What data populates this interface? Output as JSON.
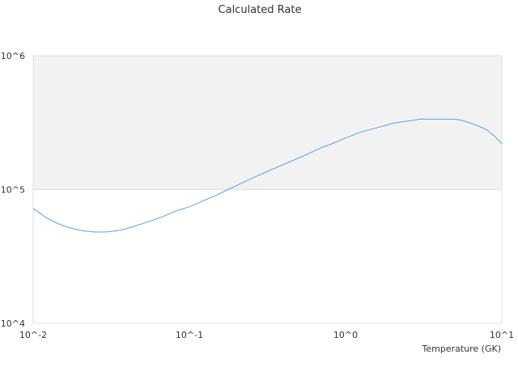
{
  "chart_data": {
    "type": "line",
    "title": "Calculated Rate",
    "xlabel": "Temperature (GK)",
    "ylabel": "",
    "x_scale": "log",
    "y_scale": "log",
    "xlim": [
      0.01,
      10
    ],
    "ylim": [
      10000,
      1000000
    ],
    "x_ticks": [
      "10^-2",
      "10^-1",
      "10^0",
      "10^1"
    ],
    "y_ticks": [
      "10^4",
      "10^5",
      "10^6"
    ],
    "shaded_band": {
      "y_from": 100000,
      "y_to": 1000000,
      "color": "#f2f2f2"
    },
    "line_color": "#5aa0e6",
    "series": [
      {
        "x": [
          0.01,
          0.011,
          0.012,
          0.014,
          0.016,
          0.018,
          0.02,
          0.022,
          0.025,
          0.028,
          0.03,
          0.035,
          0.04,
          0.045,
          0.05,
          0.06,
          0.07,
          0.08,
          0.09,
          0.1,
          0.11,
          0.13,
          0.15,
          0.17,
          0.2,
          0.25,
          0.3,
          0.35,
          0.4,
          0.5,
          0.6,
          0.7,
          0.8,
          0.9,
          1.0,
          1.2,
          1.5,
          1.8,
          2.0,
          2.5,
          3.0,
          3.5,
          4.0,
          4.5,
          5.0,
          5.5,
          6.0,
          7.0,
          8.0,
          9.0,
          10.0
        ],
        "y": [
          72000,
          67000,
          62000,
          56500,
          53000,
          51000,
          49500,
          48800,
          48200,
          48200,
          48400,
          49300,
          51200,
          53500,
          55600,
          59700,
          63800,
          68500,
          71500,
          74500,
          78000,
          85000,
          91000,
          98000,
          107000,
          121000,
          133000,
          144000,
          154000,
          172000,
          189000,
          206000,
          218000,
          230000,
          243000,
          264000,
          285000,
          302000,
          313000,
          325000,
          336000,
          336000,
          336000,
          336000,
          336000,
          330000,
          320000,
          300000,
          280000,
          250000,
          220000
        ]
      }
    ]
  }
}
